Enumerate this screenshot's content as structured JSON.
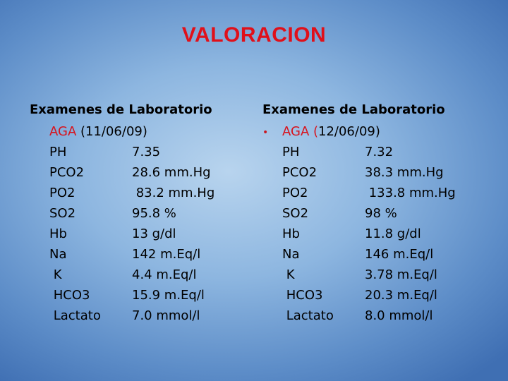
{
  "title": "VALORACION",
  "colors": {
    "title": "#e0101a",
    "accent": "#d8121c",
    "text": "#000000",
    "bullet": "#c81820"
  },
  "left": {
    "heading": "Examenes de Laboratorio",
    "aga_label": "AGA",
    "aga_date": " (11/06/09)",
    "rows": [
      {
        "label": "PH",
        "value": "7.35"
      },
      {
        "label": "PCO2",
        "value": "28.6 mm.Hg"
      },
      {
        "label": "PO2",
        "value": " 83.2 mm.Hg"
      },
      {
        "label": "SO2",
        "value": "95.8 %"
      },
      {
        "label": "Hb",
        "value": "13 g/dl"
      },
      {
        "label": "Na",
        "value": "142 m.Eq/l"
      },
      {
        "label": " K",
        "value": "4.4 m.Eq/l"
      },
      {
        "label": " HCO3",
        "value": "15.9 m.Eq/l"
      },
      {
        "label": " Lactato",
        "value": "7.0 mmol/l"
      }
    ]
  },
  "right": {
    "heading": "Examenes de Laboratorio",
    "bullet": "•",
    "aga_label": "AGA (",
    "aga_date": "12/06/09)",
    "rows": [
      {
        "label": "PH",
        "value": "7.32"
      },
      {
        "label": "PCO2",
        "value": "38.3 mm.Hg"
      },
      {
        "label": "PO2",
        "value": " 133.8 mm.Hg"
      },
      {
        "label": "SO2",
        "value": "98 %"
      },
      {
        "label": "Hb",
        "value": "11.8 g/dl"
      },
      {
        "label": "Na",
        "value": "146 m.Eq/l"
      },
      {
        "label": " K",
        "value": "3.78 m.Eq/l"
      },
      {
        "label": " HCO3",
        "value": "20.3 m.Eq/l"
      },
      {
        "label": " Lactato",
        "value": "8.0 mmol/l"
      }
    ]
  }
}
